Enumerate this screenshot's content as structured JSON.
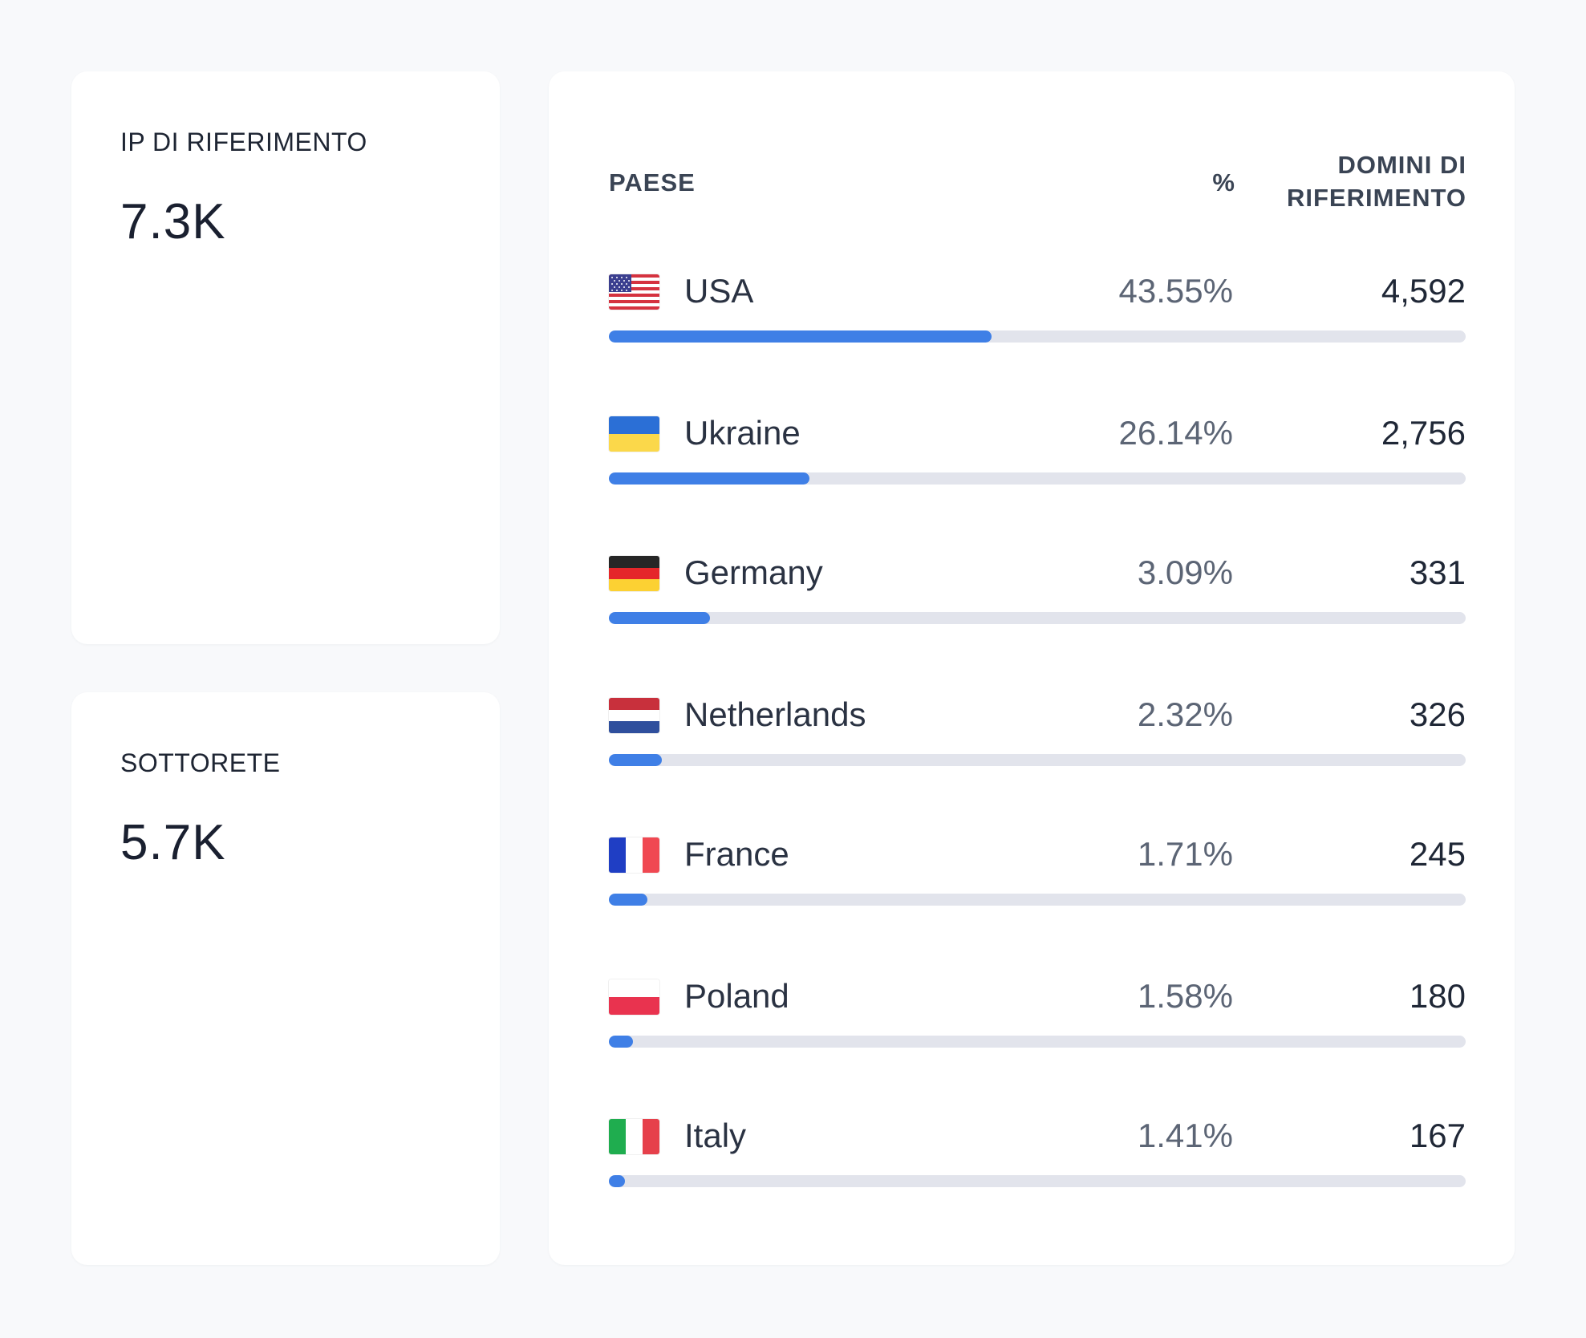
{
  "cards": {
    "ip": {
      "label": "IP DI RIFERIMENTO",
      "value": "7.3K"
    },
    "subnet": {
      "label": "SOTTORETE",
      "value": "5.7K"
    }
  },
  "table": {
    "headers": {
      "country": "PAESE",
      "percent": "%",
      "domains_line1": "DOMINI DI",
      "domains_line2": "RIFERIMENTO"
    },
    "rows": [
      {
        "country": "USA",
        "percent": "43.55%",
        "domains": "4,592",
        "bar_fraction": 0.4467,
        "flag": "us-flag-icon"
      },
      {
        "country": "Ukraine",
        "percent": "26.14%",
        "domains": "2,756",
        "bar_fraction": 0.2338,
        "flag": "ukraine-flag-icon"
      },
      {
        "country": "Germany",
        "percent": "3.09%",
        "domains": "331",
        "bar_fraction": 0.118,
        "flag": "germany-flag-icon"
      },
      {
        "country": "Netherlands",
        "percent": "2.32%",
        "domains": "326",
        "bar_fraction": 0.062,
        "flag": "netherlands-flag-icon"
      },
      {
        "country": "France",
        "percent": "1.71%",
        "domains": "245",
        "bar_fraction": 0.045,
        "flag": "france-flag-icon"
      },
      {
        "country": "Poland",
        "percent": "1.58%",
        "domains": "180",
        "bar_fraction": 0.028,
        "flag": "poland-flag-icon"
      },
      {
        "country": "Italy",
        "percent": "1.41%",
        "domains": "167",
        "bar_fraction": 0.019,
        "flag": "italy-flag-icon"
      }
    ]
  },
  "colors": {
    "bar_fill": "#3f7fe6",
    "bar_track": "#e2e4ec",
    "background": "#f8f9fb",
    "card": "#ffffff"
  }
}
